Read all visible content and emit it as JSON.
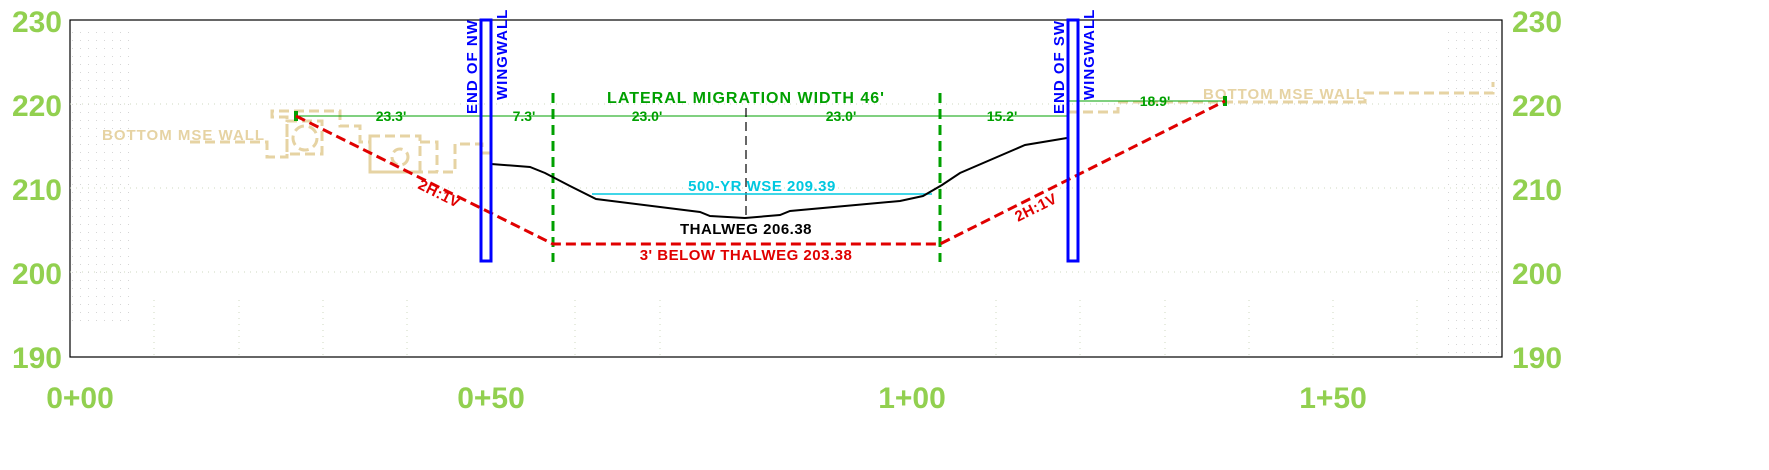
{
  "axes": {
    "y_ticks": [
      "230",
      "220",
      "210",
      "200",
      "190"
    ],
    "x_ticks": [
      "0+00",
      "0+50",
      "1+00",
      "1+50"
    ],
    "y_range": [
      190,
      230
    ],
    "x_range": [
      0,
      170
    ]
  },
  "labels": {
    "lateral_migration": "LATERAL  MIGRATION  WIDTH  46'",
    "wse": "500-YR  WSE  209.39",
    "thalweg": "THALWEG  206.38",
    "below_thalweg": "3' BELOW   THALWEG  203.38",
    "mse_left": "BOTTOM  MSE  WALL",
    "mse_right": "BOTTOM  MSE  WALL",
    "wingwall_left_line1": "END  OF  NW",
    "wingwall_left_line2": "WINGWALL",
    "wingwall_right_line1": "END  OF  SW",
    "wingwall_right_line2": "WINGWALL",
    "slope_left": "2H:1V",
    "slope_right": "2H:1V"
  },
  "dimensions": {
    "d1": "23.3'",
    "d2": "7.3'",
    "d3": "23.0'",
    "d4": "23.0'",
    "d5": "15.2'",
    "d6": "18.9'"
  },
  "colors": {
    "axis_label": "#92d050",
    "dimension": "#00a000",
    "wse": "#00c8e0",
    "scour": "#e00000",
    "wingwall": "#0000ff",
    "mse": "#e6d3a3",
    "ground": "#000000"
  },
  "chart_data": {
    "type": "line",
    "xlabel": "",
    "ylabel": "",
    "xlim": [
      0,
      170
    ],
    "ylim": [
      190,
      230
    ],
    "x_tick_labels": [
      "0+00",
      "0+50",
      "1+00",
      "1+50"
    ],
    "y_tick_labels": [
      "190",
      "200",
      "210",
      "220",
      "230"
    ],
    "series": [
      {
        "x": [
          50.5,
          55,
          57,
          60,
          63,
          75,
          76,
          80,
          86,
          87,
          101,
          103,
          106,
          113,
          118
        ],
        "y": [
          213,
          212.7,
          212,
          210.5,
          208.6,
          207.6,
          207.2,
          206.4,
          207.2,
          207.6,
          208.8,
          210.2,
          211.5,
          215.2,
          216.1
        ]
      },
      {
        "x": [
          26.5,
          57.5,
          103,
          137
        ],
        "y": [
          218.8,
          203.38,
          203.38,
          220.4
        ]
      },
      {
        "x": [
          62.5,
          103
        ],
        "y": [
          209.39,
          209.39
        ]
      }
    ]
  }
}
